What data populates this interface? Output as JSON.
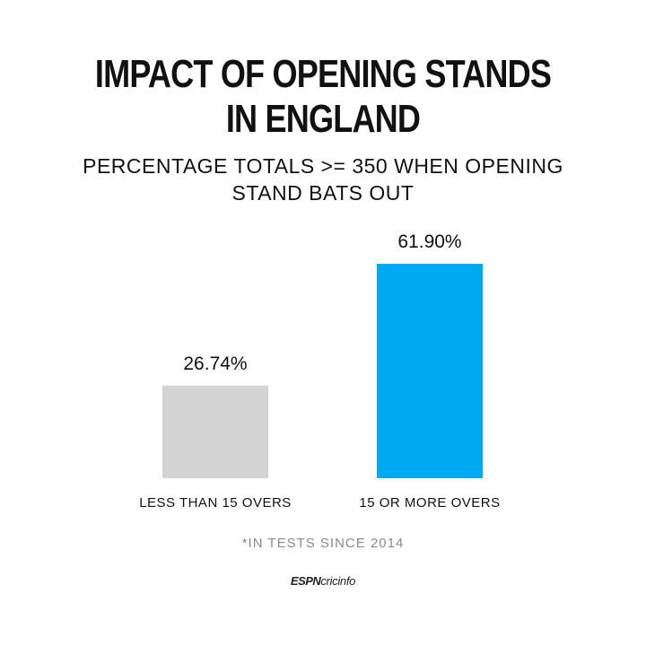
{
  "header": {
    "title_line1": "IMPACT OF OPENING STANDS",
    "title_line2": "IN ENGLAND",
    "subtitle_line1": "PERCENTAGE TOTALS >= 350 WHEN OPENING",
    "subtitle_line2": "STAND BATS OUT"
  },
  "chart_data": {
    "type": "bar",
    "title": "IMPACT OF OPENING STANDS IN ENGLAND",
    "subtitle": "PERCENTAGE TOTALS >= 350 WHEN OPENING STAND BATS OUT",
    "categories": [
      "LESS THAN 15 OVERS",
      "15 OR MORE OVERS"
    ],
    "values": [
      26.74,
      61.9
    ],
    "value_labels": [
      "26.74%",
      "61.90%"
    ],
    "colors": [
      "#d3d3d3",
      "#00aaf0"
    ],
    "ylim": [
      0,
      61.9
    ],
    "grid": false,
    "xlabel": "",
    "ylabel": ""
  },
  "footnote": "*IN TESTS SINCE 2014",
  "logo": {
    "part1": "ESPN",
    "part2": "cricinfo"
  }
}
